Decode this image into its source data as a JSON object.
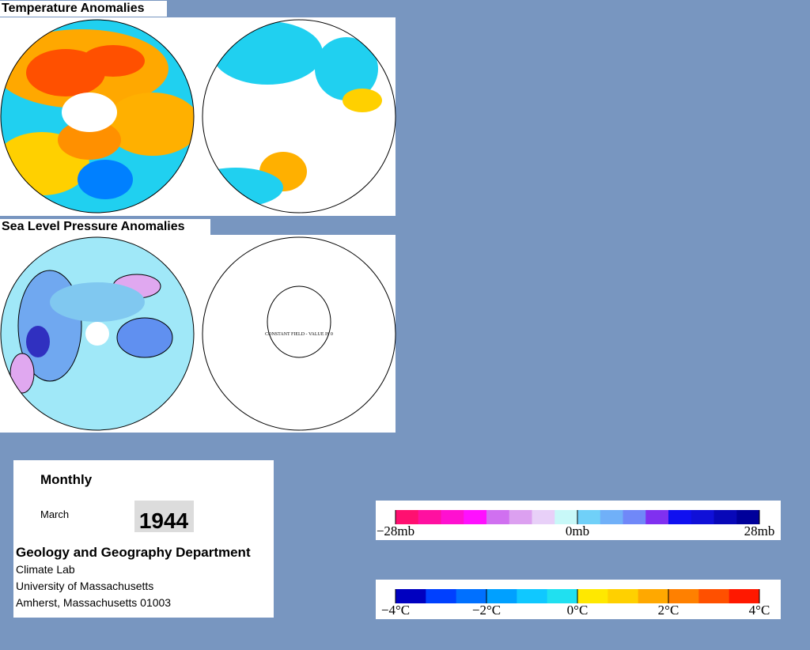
{
  "panels": [
    {
      "title": "Temperature Anomalies"
    },
    {
      "title": "Sea Level Pressure Anomalies",
      "annotation": "CONSTANT FIELD - VALUE IS 0"
    }
  ],
  "info": {
    "period": "Monthly",
    "month": "March",
    "year": "1944",
    "department": "Geology and Geography Department",
    "lines": [
      "Climate Lab",
      "University of Massachusetts",
      "Amherst, Massachusetts 01003"
    ]
  },
  "legends": [
    {
      "labels": [
        "−28mb",
        "0mb",
        "28mb"
      ],
      "colors": [
        "#ff1070",
        "#ff10a0",
        "#ff10d0",
        "#ff10ff",
        "#d070f0",
        "#dca0f0",
        "#e8d0f8",
        "#c8f8f8",
        "#70d0f8",
        "#70b0f8",
        "#7088f8",
        "#8030f0",
        "#1010f0",
        "#1010d8",
        "#0808b8",
        "#00009a"
      ]
    },
    {
      "labels": [
        "−4°C",
        "−2°C",
        "0°C",
        "2°C",
        "4°C"
      ],
      "colors": [
        "#0000c0",
        "#0040ff",
        "#0070ff",
        "#00a0ff",
        "#10c8ff",
        "#20e0f0",
        "#ffe800",
        "#ffd000",
        "#ffa800",
        "#ff8000",
        "#ff5000",
        "#ff1800"
      ]
    }
  ]
}
